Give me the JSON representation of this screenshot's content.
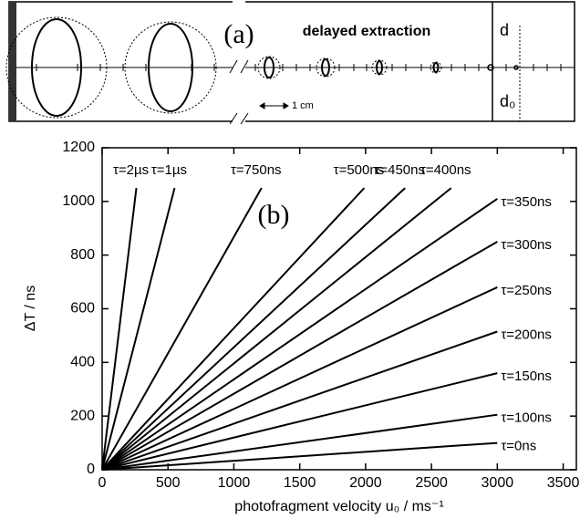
{
  "panel_a": {
    "panel_label": "(a)",
    "title": "delayed extraction",
    "scale_bar": "1 cm",
    "right_labels": [
      "d",
      "d₀"
    ]
  },
  "chart_data": {
    "type": "line",
    "annotation": "(b)",
    "xlabel": "photofragment velocity u₀ / ms⁻¹",
    "ylabel": "ΔT / ns",
    "xlim": [
      0,
      3600
    ],
    "ylim": [
      0,
      1200
    ],
    "xticks": [
      0,
      500,
      1000,
      1500,
      2000,
      2500,
      3000,
      3500
    ],
    "yticks": [
      0,
      200,
      400,
      600,
      800,
      1000,
      1200
    ],
    "color": "#000000",
    "series": [
      {
        "name": "τ=2µs",
        "x": [
          0,
          260
        ],
        "values": [
          0,
          1050
        ]
      },
      {
        "name": "τ=1µs",
        "x": [
          0,
          550
        ],
        "values": [
          0,
          1050
        ]
      },
      {
        "name": "τ=750ns",
        "x": [
          0,
          1210
        ],
        "values": [
          0,
          1050
        ]
      },
      {
        "name": "τ=500ns",
        "x": [
          0,
          1990
        ],
        "values": [
          0,
          1050
        ]
      },
      {
        "name": "τ=450ns",
        "x": [
          0,
          2300
        ],
        "values": [
          0,
          1050
        ]
      },
      {
        "name": "τ=400ns",
        "x": [
          0,
          2650
        ],
        "values": [
          0,
          1050
        ]
      },
      {
        "name": "τ=350ns",
        "x": [
          0,
          3000
        ],
        "values": [
          0,
          1010
        ]
      },
      {
        "name": "τ=300ns",
        "x": [
          0,
          3000
        ],
        "values": [
          0,
          850
        ]
      },
      {
        "name": "τ=250ns",
        "x": [
          0,
          3000
        ],
        "values": [
          0,
          680
        ]
      },
      {
        "name": "τ=200ns",
        "x": [
          0,
          3000
        ],
        "values": [
          0,
          515
        ]
      },
      {
        "name": "τ=150ns",
        "x": [
          0,
          3000
        ],
        "values": [
          0,
          360
        ]
      },
      {
        "name": "τ=100ns",
        "x": [
          0,
          3000
        ],
        "values": [
          0,
          205
        ]
      },
      {
        "name": "τ=0ns",
        "x": [
          0,
          3000
        ],
        "values": [
          0,
          100
        ]
      }
    ]
  }
}
